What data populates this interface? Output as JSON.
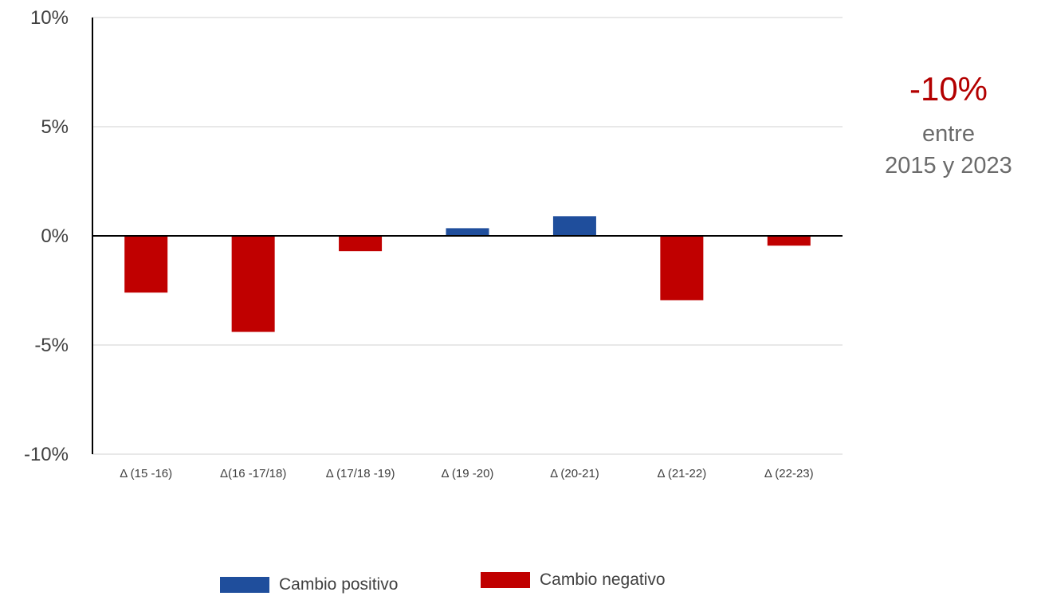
{
  "colors": {
    "positive": "#1f4e9c",
    "negative": "#c00000",
    "grid": "#d9d9d9",
    "axis": "#000000",
    "text": "#404040",
    "summary_value": "#b30000",
    "summary_text": "#6b6b6b"
  },
  "summary": {
    "value": "-10%",
    "line1": "entre",
    "line2": "2015 y 2023"
  },
  "legend": {
    "positive_label": "Cambio positivo",
    "negative_label": "Cambio negativo"
  },
  "chart_data": {
    "type": "bar",
    "categories": [
      "Δ (15 -16)",
      "Δ(16 -17/18)",
      "Δ (17/18 -19)",
      "Δ (19 -20)",
      "Δ (20-21)",
      "Δ (21-22)",
      "Δ (22-23)"
    ],
    "values": [
      -2.6,
      -4.4,
      -0.7,
      0.35,
      0.9,
      -2.95,
      -0.45
    ],
    "ylim": [
      -10,
      10
    ],
    "yticks": [
      10,
      5,
      0,
      -5,
      -10
    ],
    "ytick_labels": [
      "10%",
      "5%",
      "0%",
      "-5%",
      "-10%"
    ],
    "grid": true,
    "legend_position": "bottom",
    "title": "",
    "xlabel": "",
    "ylabel": ""
  }
}
